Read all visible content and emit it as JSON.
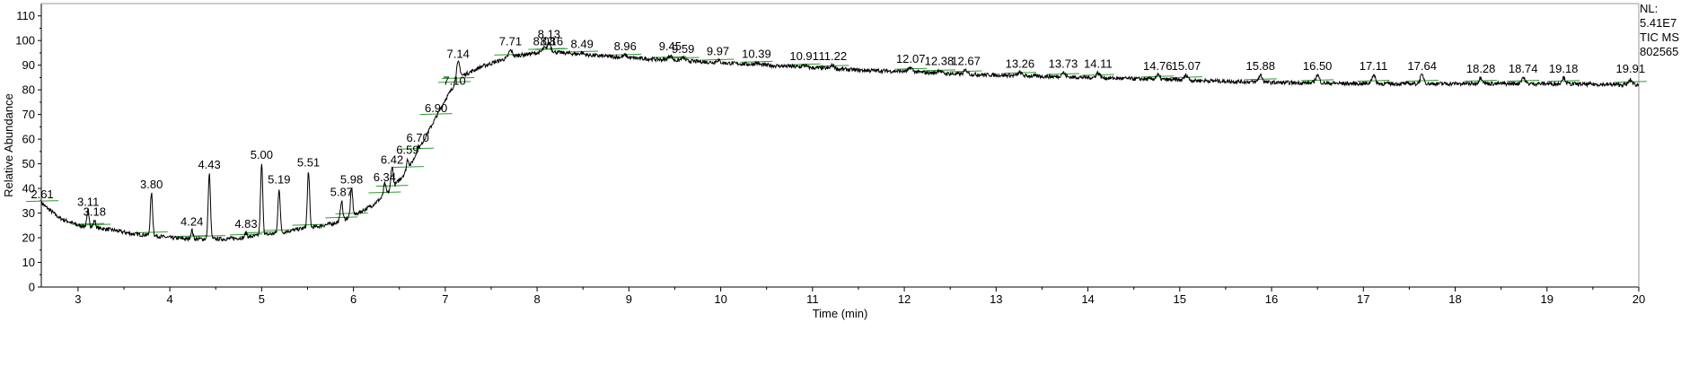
{
  "info": {
    "nl_label": "NL:",
    "nl_value": "5.41E7",
    "scan_type": "TIC  MS",
    "sample_id": "802565"
  },
  "chart_data": {
    "type": "line",
    "title": "",
    "xlabel": "Time (min)",
    "ylabel": "Relative Abundance",
    "xlim": [
      2.6,
      20
    ],
    "ylim": [
      0,
      115
    ],
    "x_ticks": [
      3,
      4,
      5,
      6,
      7,
      8,
      9,
      10,
      11,
      12,
      13,
      14,
      15,
      16,
      17,
      18,
      19,
      20
    ],
    "y_ticks": [
      0,
      10,
      20,
      30,
      40,
      50,
      60,
      70,
      80,
      90,
      100,
      110
    ],
    "grid": false,
    "colors": {
      "trace": "#000000",
      "baseline_marker": "#2e9a2e"
    },
    "baseline_points": [
      [
        2.6,
        34
      ],
      [
        2.8,
        28
      ],
      [
        3.0,
        25
      ],
      [
        3.2,
        24
      ],
      [
        3.4,
        23
      ],
      [
        3.6,
        21.5
      ],
      [
        3.8,
        21
      ],
      [
        4.0,
        20
      ],
      [
        4.2,
        19.5
      ],
      [
        4.4,
        19.5
      ],
      [
        4.6,
        19.5
      ],
      [
        4.8,
        20
      ],
      [
        5.0,
        21
      ],
      [
        5.2,
        22
      ],
      [
        5.4,
        23.5
      ],
      [
        5.6,
        24.5
      ],
      [
        5.8,
        26
      ],
      [
        6.0,
        29
      ],
      [
        6.2,
        33
      ],
      [
        6.4,
        39
      ],
      [
        6.6,
        48
      ],
      [
        6.8,
        62
      ],
      [
        7.0,
        76
      ],
      [
        7.1,
        82
      ],
      [
        7.2,
        86
      ],
      [
        7.4,
        89.5
      ],
      [
        7.6,
        92
      ],
      [
        7.8,
        94
      ],
      [
        8.0,
        95
      ],
      [
        8.1,
        95.5
      ],
      [
        8.3,
        95
      ],
      [
        8.6,
        94
      ],
      [
        9.0,
        93
      ],
      [
        9.5,
        92
      ],
      [
        10.0,
        91
      ],
      [
        10.5,
        90
      ],
      [
        11.0,
        89
      ],
      [
        11.5,
        88
      ],
      [
        12.0,
        87.5
      ],
      [
        12.5,
        86.5
      ],
      [
        13.0,
        86
      ],
      [
        14.0,
        85
      ],
      [
        15.0,
        84
      ],
      [
        16.0,
        83
      ],
      [
        17.0,
        82.5
      ],
      [
        18.0,
        82.5
      ],
      [
        19.0,
        82.5
      ],
      [
        20.0,
        82
      ]
    ],
    "peaks": [
      {
        "rt": 2.61,
        "height": 34
      },
      {
        "rt": 3.11,
        "height": 31
      },
      {
        "rt": 3.18,
        "height": 27
      },
      {
        "rt": 3.8,
        "height": 38
      },
      {
        "rt": 4.24,
        "height": 23
      },
      {
        "rt": 4.43,
        "height": 46
      },
      {
        "rt": 4.83,
        "height": 22
      },
      {
        "rt": 5.0,
        "height": 50
      },
      {
        "rt": 5.19,
        "height": 40
      },
      {
        "rt": 5.51,
        "height": 47
      },
      {
        "rt": 5.87,
        "height": 35
      },
      {
        "rt": 5.98,
        "height": 40
      },
      {
        "rt": 6.34,
        "height": 42
      },
      {
        "rt": 6.42,
        "height": 49
      },
      {
        "rt": 6.59,
        "height": 52
      },
      {
        "rt": 6.7,
        "height": 57
      },
      {
        "rt": 6.9,
        "height": 69
      },
      {
        "rt": 7.1,
        "height": 80
      },
      {
        "rt": 7.14,
        "height": 91
      },
      {
        "rt": 7.71,
        "height": 96
      },
      {
        "rt": 8.08,
        "height": 97
      },
      {
        "rt": 8.13,
        "height": 99
      },
      {
        "rt": 8.16,
        "height": 96
      },
      {
        "rt": 8.49,
        "height": 95
      },
      {
        "rt": 8.96,
        "height": 94
      },
      {
        "rt": 9.45,
        "height": 94
      },
      {
        "rt": 9.59,
        "height": 93
      },
      {
        "rt": 9.97,
        "height": 92
      },
      {
        "rt": 10.39,
        "height": 91
      },
      {
        "rt": 10.91,
        "height": 90
      },
      {
        "rt": 11.22,
        "height": 90
      },
      {
        "rt": 12.07,
        "height": 89
      },
      {
        "rt": 12.38,
        "height": 88
      },
      {
        "rt": 12.67,
        "height": 88
      },
      {
        "rt": 13.26,
        "height": 87
      },
      {
        "rt": 13.73,
        "height": 87
      },
      {
        "rt": 14.11,
        "height": 87
      },
      {
        "rt": 14.76,
        "height": 86
      },
      {
        "rt": 15.07,
        "height": 86
      },
      {
        "rt": 15.88,
        "height": 86
      },
      {
        "rt": 16.5,
        "height": 86
      },
      {
        "rt": 17.11,
        "height": 86
      },
      {
        "rt": 17.64,
        "height": 86
      },
      {
        "rt": 18.28,
        "height": 85
      },
      {
        "rt": 18.74,
        "height": 85
      },
      {
        "rt": 19.18,
        "height": 85
      },
      {
        "rt": 19.91,
        "height": 84
      }
    ],
    "peak_labels": [
      {
        "text": "2.61",
        "rt": 2.61,
        "y": 36
      },
      {
        "text": "3.11",
        "rt": 3.11,
        "y": 33
      },
      {
        "text": "3.18",
        "rt": 3.18,
        "y": 29
      },
      {
        "text": "3.80",
        "rt": 3.8,
        "y": 40
      },
      {
        "text": "4.24",
        "rt": 4.24,
        "y": 25
      },
      {
        "text": "4.43",
        "rt": 4.43,
        "y": 48
      },
      {
        "text": "4.83",
        "rt": 4.83,
        "y": 24
      },
      {
        "text": "5.00",
        "rt": 5.0,
        "y": 52
      },
      {
        "text": "5.19",
        "rt": 5.19,
        "y": 42
      },
      {
        "text": "5.51",
        "rt": 5.51,
        "y": 49
      },
      {
        "text": "5.87",
        "rt": 5.87,
        "y": 37
      },
      {
        "text": "5.98",
        "rt": 5.98,
        "y": 42
      },
      {
        "text": "6.34",
        "rt": 6.34,
        "y": 43
      },
      {
        "text": "6.42",
        "rt": 6.42,
        "y": 50
      },
      {
        "text": "6.59",
        "rt": 6.59,
        "y": 54
      },
      {
        "text": "6.70",
        "rt": 6.7,
        "y": 59
      },
      {
        "text": "6.90",
        "rt": 6.9,
        "y": 71
      },
      {
        "text": "7.10",
        "rt": 7.1,
        "y": 82
      },
      {
        "text": "7.14",
        "rt": 7.14,
        "y": 93
      },
      {
        "text": "7.71",
        "rt": 7.71,
        "y": 98
      },
      {
        "text": "8.08",
        "rt": 8.08,
        "y": 98
      },
      {
        "text": "8.13",
        "rt": 8.13,
        "y": 101
      },
      {
        "text": "8.16",
        "rt": 8.16,
        "y": 98
      },
      {
        "text": "8.49",
        "rt": 8.49,
        "y": 97
      },
      {
        "text": "8.96",
        "rt": 8.96,
        "y": 96
      },
      {
        "text": "9.45",
        "rt": 9.45,
        "y": 96
      },
      {
        "text": "9.59",
        "rt": 9.59,
        "y": 95
      },
      {
        "text": "9.97",
        "rt": 9.97,
        "y": 94
      },
      {
        "text": "10.39",
        "rt": 10.39,
        "y": 93
      },
      {
        "text": "10.91",
        "rt": 10.91,
        "y": 92
      },
      {
        "text": "11.22",
        "rt": 11.22,
        "y": 92
      },
      {
        "text": "12.07",
        "rt": 12.07,
        "y": 91
      },
      {
        "text": "12.38",
        "rt": 12.38,
        "y": 90
      },
      {
        "text": "12.67",
        "rt": 12.67,
        "y": 90
      },
      {
        "text": "13.26",
        "rt": 13.26,
        "y": 89
      },
      {
        "text": "13.73",
        "rt": 13.73,
        "y": 89
      },
      {
        "text": "14.11",
        "rt": 14.11,
        "y": 89
      },
      {
        "text": "14.76",
        "rt": 14.76,
        "y": 88
      },
      {
        "text": "15.07",
        "rt": 15.07,
        "y": 88
      },
      {
        "text": "15.88",
        "rt": 15.88,
        "y": 88
      },
      {
        "text": "16.50",
        "rt": 16.5,
        "y": 88
      },
      {
        "text": "17.11",
        "rt": 17.11,
        "y": 88
      },
      {
        "text": "17.64",
        "rt": 17.64,
        "y": 88
      },
      {
        "text": "18.28",
        "rt": 18.28,
        "y": 87
      },
      {
        "text": "18.74",
        "rt": 18.74,
        "y": 87
      },
      {
        "text": "19.18",
        "rt": 19.18,
        "y": 87
      },
      {
        "text": "19.91",
        "rt": 19.91,
        "y": 87
      }
    ]
  }
}
